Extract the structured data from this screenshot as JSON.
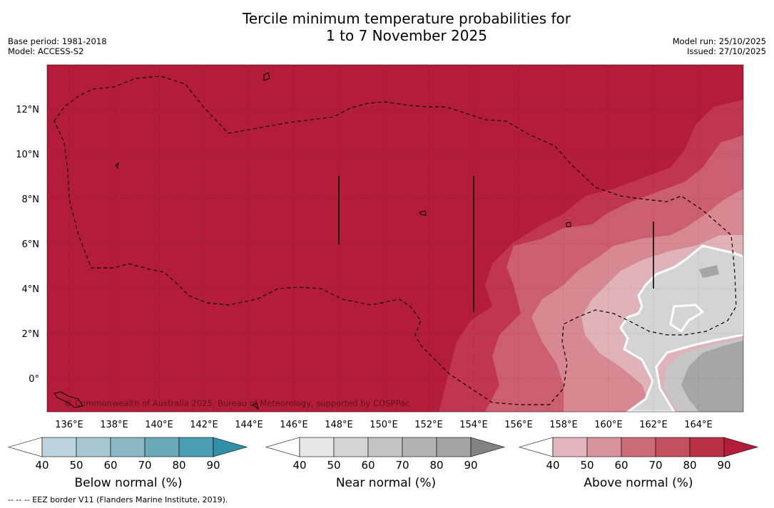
{
  "title": {
    "line1": "Tercile minimum temperature probabilities for",
    "line2": "1 to 7 November 2025"
  },
  "meta": {
    "base_period": "Base period: 1981-2018",
    "model": "Model: ACCESS-S2",
    "model_run": "Model run: 25/10/2025",
    "issued": "Issued: 27/10/2025"
  },
  "map": {
    "lon_ticks": [
      "136°E",
      "138°E",
      "140°E",
      "142°E",
      "144°E",
      "146°E",
      "148°E",
      "150°E",
      "152°E",
      "154°E",
      "156°E",
      "158°E",
      "160°E",
      "162°E",
      "164°E"
    ],
    "lat_ticks": [
      "12°N",
      "10°N",
      "8°N",
      "6°N",
      "4°N",
      "2°N",
      "0°"
    ],
    "copyright": "© Commonwealth of Australia 2025, Bureau of Meteorology, supported by COSPPac",
    "colors": {
      "above_90": "#b31d3a",
      "above_80": "#c23550",
      "above_70": "#cc5e72",
      "above_60": "#d88892",
      "above_50": "#e0b3b9",
      "near_50": "#d4d4d4",
      "near_60": "#c6c6c6",
      "near_70": "#b4b4b4",
      "near_80": "#a6a6a6"
    }
  },
  "colorbars": [
    {
      "label": "Below normal (%)",
      "ticks": [
        "40",
        "50",
        "60",
        "70",
        "80",
        "90"
      ],
      "colors": [
        "#ffffff",
        "#bcd4dc",
        "#a5c8d0",
        "#8ab8c4",
        "#6aaab8",
        "#4a9cb0",
        "#3190a8"
      ]
    },
    {
      "label": "Near normal (%)",
      "ticks": [
        "40",
        "50",
        "60",
        "70",
        "80",
        "90"
      ],
      "colors": [
        "#ffffff",
        "#e6e6e6",
        "#d4d4d4",
        "#c4c4c4",
        "#b3b3b3",
        "#a3a3a3",
        "#828282"
      ]
    },
    {
      "label": "Above normal (%)",
      "ticks": [
        "40",
        "50",
        "60",
        "70",
        "80",
        "90"
      ],
      "colors": [
        "#ffffff",
        "#e2b5bc",
        "#d8929b",
        "#cc6c79",
        "#c2505f",
        "#b93246",
        "#b31d3a"
      ]
    }
  ],
  "footnote": "--  --  -- EEZ border V11 (Flanders Marine Institute, 2019)."
}
